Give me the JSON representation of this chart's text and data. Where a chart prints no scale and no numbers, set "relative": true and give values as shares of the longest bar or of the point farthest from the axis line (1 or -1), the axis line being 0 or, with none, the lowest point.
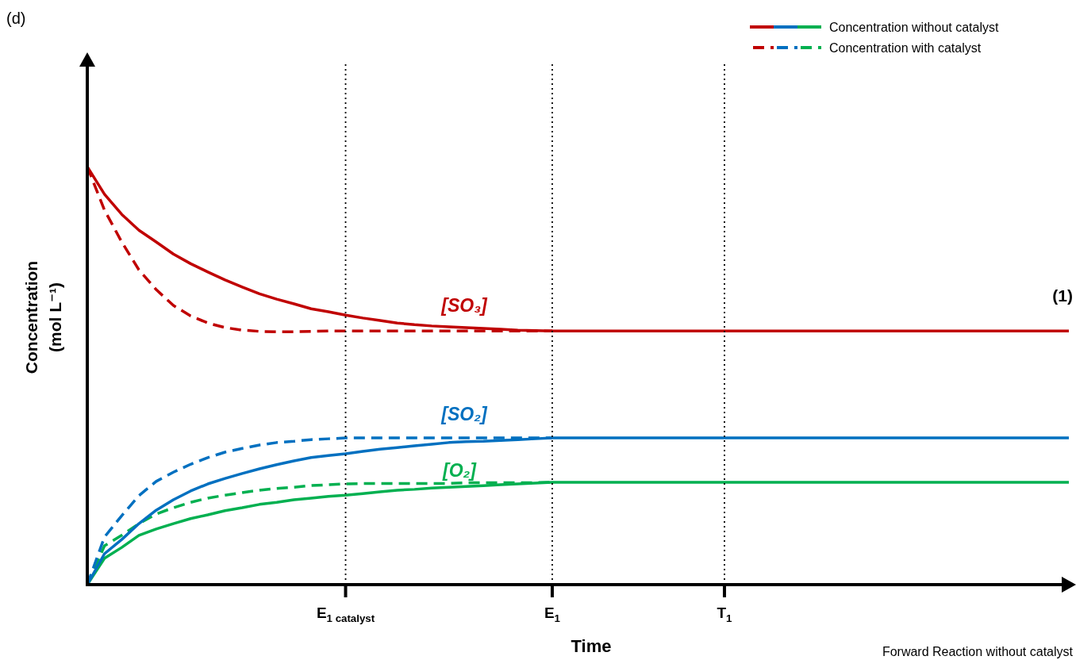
{
  "chart_data": {
    "type": "line",
    "relative": true,
    "xlabel": "Time",
    "ylabel": "Concentration\n(mol L⁻¹)",
    "categories": [
      null,
      null,
      null,
      null,
      null,
      null,
      null,
      null,
      null,
      null,
      null,
      null,
      null,
      null,
      null,
      "E$_{1 catalyst}$",
      null,
      null,
      null,
      null,
      null,
      null,
      null,
      null,
      null,
      null,
      null,
      "E$_{1}$",
      null,
      null,
      null,
      null,
      null,
      null,
      null,
      null,
      null,
      "T$_{1}$",
      null,
      null,
      null,
      null,
      null,
      null,
      null,
      null,
      null,
      null,
      null,
      null,
      null,
      null,
      null,
      null,
      null,
      null,
      null,
      null
    ],
    "legend": "top right",
    "marker": "none",
    "series": [
      {
        "color": "#c00000",
        "line_style": "solid",
        "values": [
          1.0,
          0.934,
          0.886,
          0.848,
          0.82,
          0.791,
          0.768,
          0.748,
          0.729,
          0.712,
          0.696,
          0.683,
          0.672,
          0.66,
          0.653,
          0.645,
          0.638,
          0.632,
          0.626,
          0.622,
          0.619,
          0.617,
          0.615,
          0.613,
          0.611,
          0.609,
          0.608,
          0.607,
          0.607,
          0.607,
          0.607,
          0.607,
          0.607,
          0.607,
          0.607,
          0.607,
          0.607,
          0.607,
          0.607,
          0.607,
          0.607,
          0.607,
          0.607,
          0.607,
          0.607,
          0.607,
          0.607,
          0.607,
          0.607,
          0.607,
          0.607,
          0.607,
          0.607,
          0.607,
          0.607,
          0.607,
          0.607,
          0.607
        ]
      },
      {
        "color": "#0070c0",
        "line_style": "solid",
        "values": [
          0,
          0.074,
          0.108,
          0.146,
          0.178,
          0.203,
          0.224,
          0.241,
          0.254,
          0.266,
          0.277,
          0.287,
          0.296,
          0.304,
          0.309,
          0.313,
          0.319,
          0.324,
          0.328,
          0.332,
          0.336,
          0.34,
          0.342,
          0.343,
          0.345,
          0.347,
          0.349,
          0.351,
          0.351,
          0.351,
          0.351,
          0.351,
          0.351,
          0.351,
          0.351,
          0.351,
          0.351,
          0.351,
          0.351,
          0.351,
          0.351,
          0.351,
          0.351,
          0.351,
          0.351,
          0.351,
          0.351,
          0.351,
          0.351,
          0.351,
          0.351,
          0.351,
          0.351,
          0.351,
          0.351,
          0.351,
          0.351,
          0.351
        ]
      },
      {
        "name": "Concentration without catalyst",
        "color": "#00b050",
        "line_style": "solid",
        "values": [
          0,
          0.063,
          0.089,
          0.118,
          0.133,
          0.146,
          0.158,
          0.167,
          0.177,
          0.184,
          0.192,
          0.197,
          0.203,
          0.207,
          0.211,
          0.214,
          0.218,
          0.222,
          0.226,
          0.228,
          0.231,
          0.233,
          0.235,
          0.237,
          0.239,
          0.241,
          0.243,
          0.245,
          0.245,
          0.245,
          0.245,
          0.245,
          0.245,
          0.245,
          0.245,
          0.245,
          0.245,
          0.245,
          0.245,
          0.245,
          0.245,
          0.245,
          0.245,
          0.245,
          0.245,
          0.245,
          0.245,
          0.245,
          0.245,
          0.245,
          0.245,
          0.245,
          0.245,
          0.245,
          0.245,
          0.245,
          0.245,
          0.245
        ]
      },
      {
        "color": "#c00000",
        "line_style": "dashed",
        "values": [
          1.0,
          0.896,
          0.82,
          0.753,
          0.706,
          0.668,
          0.643,
          0.626,
          0.615,
          0.609,
          0.606,
          0.605,
          0.605,
          0.606,
          0.607,
          0.607,
          0.607,
          0.607,
          0.607,
          0.607,
          0.607,
          0.607,
          0.607,
          0.607,
          0.607,
          0.607,
          0.607,
          0.607,
          null,
          null,
          null,
          null,
          null,
          null,
          null,
          null,
          null,
          null,
          null,
          null,
          null,
          null,
          null,
          null,
          null,
          null,
          null,
          null,
          null,
          null,
          null,
          null,
          null,
          null,
          null,
          null,
          null,
          null
        ]
      },
      {
        "color": "#0070c0",
        "line_style": "dashed",
        "values": [
          0,
          0.114,
          0.165,
          0.213,
          0.247,
          0.269,
          0.288,
          0.304,
          0.317,
          0.326,
          0.334,
          0.34,
          0.343,
          0.347,
          0.349,
          0.351,
          0.351,
          0.351,
          0.351,
          0.351,
          0.351,
          0.351,
          0.351,
          0.351,
          0.351,
          0.351,
          0.351,
          0.351,
          null,
          null,
          null,
          null,
          null,
          null,
          null,
          null,
          null,
          null,
          null,
          null,
          null,
          null,
          null,
          null,
          null,
          null,
          null,
          null,
          null,
          null,
          null,
          null,
          null,
          null,
          null,
          null,
          null,
          null
        ]
      },
      {
        "name": "Concentration with catalyst",
        "color": "#00b050",
        "line_style": "dashed",
        "values": [
          0,
          0.093,
          0.118,
          0.146,
          0.169,
          0.184,
          0.197,
          0.207,
          0.214,
          0.22,
          0.226,
          0.23,
          0.233,
          0.237,
          0.239,
          0.241,
          0.242,
          0.242,
          0.242,
          0.242,
          0.242,
          0.242,
          0.244,
          0.244,
          0.244,
          0.244,
          0.244,
          0.245,
          null,
          null,
          null,
          null,
          null,
          null,
          null,
          null,
          null,
          null,
          null,
          null,
          null,
          null,
          null,
          null,
          null,
          null,
          null,
          null,
          null,
          null,
          null,
          null,
          null,
          null,
          null,
          null,
          null,
          null
        ]
      }
    ],
    "ref_lines": [
      {
        "axis": "x",
        "value": "E$_{1 catalyst}$",
        "color": "#000000",
        "line_style": "dotted"
      },
      {
        "axis": "x",
        "value": "E$_{1}$",
        "color": "#000000",
        "line_style": "dotted"
      },
      {
        "axis": "x",
        "value": "T$_{1}$",
        "color": "#000000",
        "line_style": "dotted"
      }
    ],
    "annotations": [
      "(d)",
      "(1)",
      "Forward Reaction without catalyst",
      "[SO₃]",
      "[SO₂]",
      "[O₂]"
    ]
  }
}
